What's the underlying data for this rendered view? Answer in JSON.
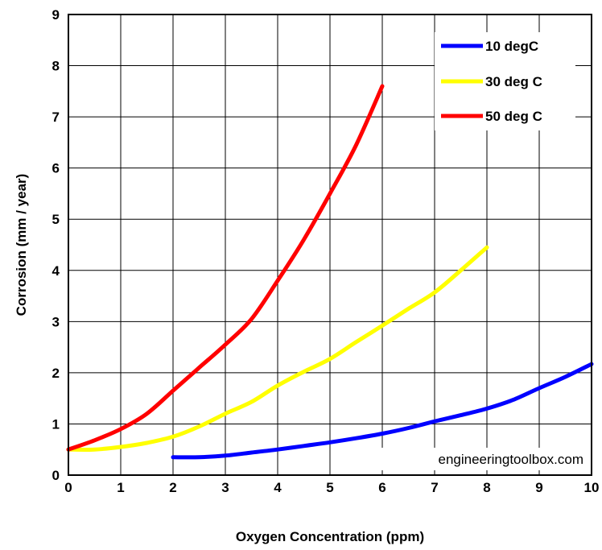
{
  "chart_data": {
    "type": "line",
    "xlabel": "Oxygen Concentration (ppm)",
    "ylabel": "Corrosion (mm / year)",
    "xlim": [
      0,
      10
    ],
    "ylim": [
      0,
      9
    ],
    "xticks": [
      "0",
      "1",
      "2",
      "3",
      "4",
      "5",
      "6",
      "7",
      "8",
      "9",
      "10"
    ],
    "yticks": [
      "0",
      "1",
      "2",
      "3",
      "4",
      "5",
      "6",
      "7",
      "8",
      "9"
    ],
    "grid": true,
    "legend_position": "top-right",
    "watermark": "engineeringtoolbox.com",
    "series": [
      {
        "name": "10 degC",
        "color": "#0000ff",
        "x": [
          2,
          2.5,
          3,
          3.5,
          4,
          4.5,
          5,
          5.5,
          6,
          6.5,
          7,
          7.5,
          8,
          8.5,
          9,
          9.5,
          10
        ],
        "y": [
          0.35,
          0.35,
          0.38,
          0.44,
          0.5,
          0.57,
          0.64,
          0.72,
          0.81,
          0.92,
          1.05,
          1.17,
          1.3,
          1.47,
          1.7,
          1.92,
          2.17
        ]
      },
      {
        "name": "30 deg C",
        "color": "#ffff00",
        "x": [
          0,
          0.5,
          1,
          1.5,
          2,
          2.5,
          3,
          3.5,
          4,
          4.5,
          5,
          5.5,
          6,
          6.5,
          7,
          7.5,
          8
        ],
        "y": [
          0.5,
          0.5,
          0.55,
          0.63,
          0.75,
          0.95,
          1.2,
          1.43,
          1.75,
          2.02,
          2.27,
          2.6,
          2.92,
          3.25,
          3.57,
          4.0,
          4.45
        ]
      },
      {
        "name": "50 deg C",
        "color": "#ff0000",
        "x": [
          0,
          0.5,
          1,
          1.5,
          2,
          2.5,
          3,
          3.5,
          4,
          4.5,
          5,
          5.5,
          6
        ],
        "y": [
          0.5,
          0.68,
          0.9,
          1.2,
          1.65,
          2.1,
          2.55,
          3.05,
          3.8,
          4.6,
          5.5,
          6.45,
          7.6
        ]
      }
    ]
  }
}
